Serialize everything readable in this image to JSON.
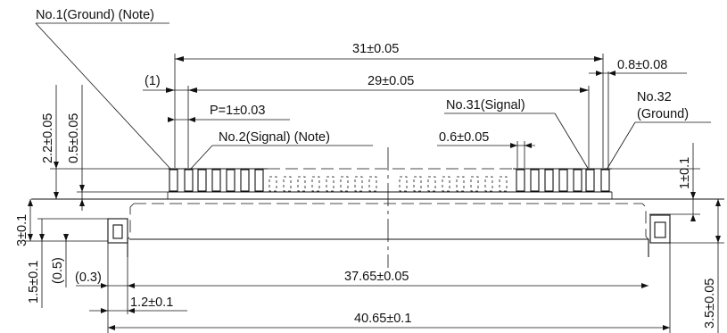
{
  "callouts": {
    "pin1": "No.1(Ground) (Note)",
    "pin2": "No.2(Signal) (Note)",
    "pin31": "No.31(Signal)",
    "pin32_line1": "No.32",
    "pin32_line2": "(Ground)"
  },
  "dimensions": {
    "overall_pitch_span": "31±0.05",
    "inner_span": "29±0.05",
    "pin1_offset": "(1)",
    "pitch": "P=1±0.03",
    "pin_width": "0.6±0.05",
    "end_pin_width": "0.8±0.08",
    "lead_height": "2.2±0.05",
    "lead_standoff": "0.5±0.05",
    "right_lead_height": "1±0.1",
    "body_height": "3±0.1",
    "boss_height": "1.5±0.1",
    "boss_offset": "(0.5)",
    "boss_inset": "(0.3)",
    "boss_width": "1.2±0.1",
    "body_inner_width": "37.65±0.05",
    "body_overall_width": "40.65±0.1",
    "overall_height": "3.5±0.05"
  }
}
